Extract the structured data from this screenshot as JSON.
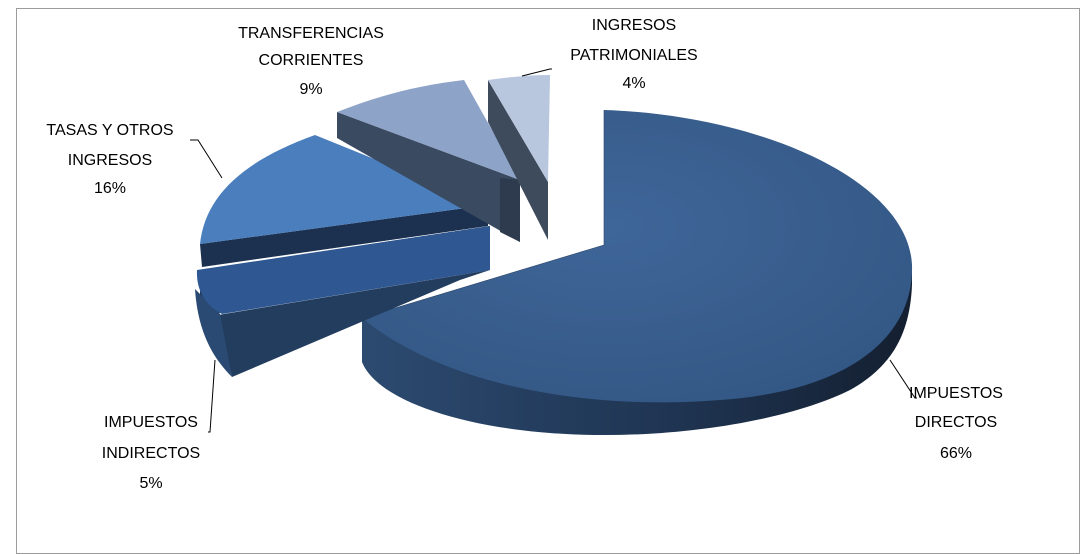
{
  "chart_data": {
    "type": "pie",
    "title": "",
    "legend": "none",
    "unit": "%",
    "slices": [
      {
        "label_lines": [
          "IMPUESTOS",
          "DIRECTOS"
        ],
        "value_label": "66%",
        "value": 66,
        "color": "#3a5f8f"
      },
      {
        "label_lines": [
          "IMPUESTOS",
          "INDIRECTOS"
        ],
        "value_label": "5%",
        "value": 5,
        "color": "#2f5792"
      },
      {
        "label_lines": [
          "TASAS Y OTROS",
          "INGRESOS"
        ],
        "value_label": "16%",
        "value": 16,
        "color": "#4a7ebd"
      },
      {
        "label_lines": [
          "TRANSFERENCIAS",
          "CORRIENTES"
        ],
        "value_label": "9%",
        "value": 9,
        "color": "#8ea3c8"
      },
      {
        "label_lines": [
          "INGRESOS",
          "PATRIMONIALES"
        ],
        "value_label": "4%",
        "value": 4,
        "color": "#b8c6de"
      }
    ]
  }
}
